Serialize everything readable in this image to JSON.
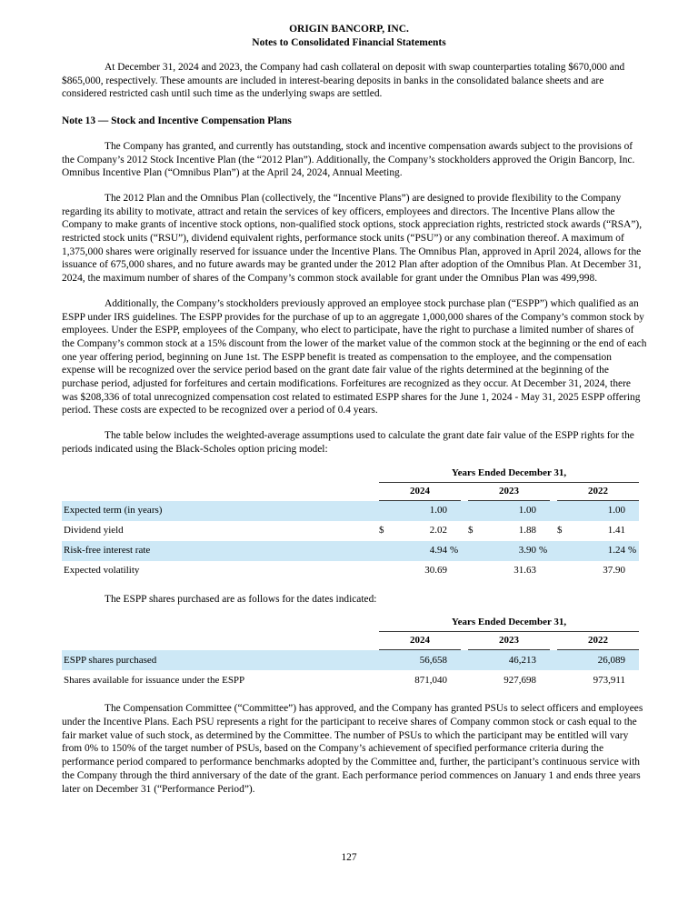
{
  "colors": {
    "row_shade": "#cde8f6",
    "rule": "#333333"
  },
  "header": {
    "title": "ORIGIN BANCORP, INC.",
    "subtitle": "Notes to Consolidated Financial Statements"
  },
  "paragraphs": {
    "p1": "At December 31, 2024 and 2023, the Company had cash collateral on deposit with swap counterparties totaling $670,000 and $865,000, respectively. These amounts are included in interest-bearing deposits in banks in the consolidated balance sheets and are considered restricted cash until such time as the underlying swaps are settled.",
    "note_heading": "Note 13 — Stock and Incentive Compensation Plans",
    "p2": "The Company has granted, and currently has outstanding, stock and incentive compensation awards subject to the provisions of the Company’s 2012 Stock Incentive Plan (the “2012 Plan”). Additionally, the Company’s stockholders approved the Origin Bancorp, Inc. Omnibus Incentive Plan (“Omnibus Plan”) at the April 24, 2024, Annual Meeting.",
    "p3": "The 2012 Plan and the Omnibus Plan (collectively, the “Incentive Plans”) are designed to provide flexibility to the Company regarding its ability to motivate, attract and retain the services of key officers, employees and directors. The Incentive Plans allow the Company to make grants of incentive stock options, non-qualified stock options, stock appreciation rights, restricted stock awards (“RSA”), restricted stock units (“RSU”), dividend equivalent rights, performance stock units (“PSU”) or any combination thereof. A maximum of 1,375,000 shares were originally reserved for issuance under the Incentive Plans. The Omnibus Plan, approved in April 2024, allows for the issuance of 675,000 shares, and no future awards may be granted under the 2012 Plan after adoption of the Omnibus Plan. At December 31, 2024, the maximum number of shares of the Company’s common stock available for grant under the Omnibus Plan was 499,998.",
    "p4": "Additionally, the Company’s stockholders previously approved an employee stock purchase plan (“ESPP”) which qualified as an ESPP under IRS guidelines. The ESPP provides for the purchase of up to an aggregate 1,000,000 shares of the Company’s common stock by employees. Under the ESPP, employees of the Company, who elect to participate, have the right to purchase a limited number of shares of the Company’s common stock at a 15% discount from the lower of the market value of the common stock at the beginning or the end of each one year offering period, beginning on June 1st. The ESPP benefit is treated as compensation to the employee, and the compensation expense will be recognized over the service period based on the grant date fair value of the rights determined at the beginning of the purchase period, adjusted for forfeitures and certain modifications. Forfeitures are recognized as they occur. At December 31, 2024, there was $208,336 of total unrecognized compensation cost related to estimated ESPP shares for the June 1, 2024 - May 31, 2025 ESPP offering period. These costs are expected to be recognized over a period of 0.4 years.",
    "p5": "The table below includes the weighted-average assumptions used to calculate the grant date fair value of the ESPP rights for the periods indicated using the Black-Scholes option pricing model:",
    "p6": "The ESPP shares purchased are as follows for the dates indicated:",
    "p7": "The Compensation Committee (“Committee”) has approved, and the Company has granted PSUs to select officers and employees under the Incentive Plans. Each PSU represents a right for the participant to receive shares of Company common stock or cash equal to the fair market value of such stock, as determined by the Committee. The number of PSUs to which the participant may be entitled will vary from 0% to 150% of the target number of PSUs, based on the Company’s achievement of specified performance criteria during the performance period compared to performance benchmarks adopted by the Committee and, further, the participant’s continuous service with the Company through the third anniversary of the date of the grant. Each performance period commences on January 1 and ends three years later on December 31 (“Performance Period”)."
  },
  "table1": {
    "span_header": "Years Ended December 31,",
    "years": [
      "2024",
      "2023",
      "2022"
    ],
    "rows": [
      {
        "label": "Expected term (in years)",
        "cells": [
          {
            "pre": "",
            "val": "1.00",
            "suf": ""
          },
          {
            "pre": "",
            "val": "1.00",
            "suf": ""
          },
          {
            "pre": "",
            "val": "1.00",
            "suf": ""
          }
        ]
      },
      {
        "label": "Dividend yield",
        "cells": [
          {
            "pre": "$",
            "val": "2.02",
            "suf": ""
          },
          {
            "pre": "$",
            "val": "1.88",
            "suf": ""
          },
          {
            "pre": "$",
            "val": "1.41",
            "suf": ""
          }
        ]
      },
      {
        "label": "Risk-free interest rate",
        "cells": [
          {
            "pre": "",
            "val": "4.94",
            "suf": "%"
          },
          {
            "pre": "",
            "val": "3.90",
            "suf": "%"
          },
          {
            "pre": "",
            "val": "1.24",
            "suf": "%"
          }
        ]
      },
      {
        "label": "Expected volatility",
        "cells": [
          {
            "pre": "",
            "val": "30.69",
            "suf": ""
          },
          {
            "pre": "",
            "val": "31.63",
            "suf": ""
          },
          {
            "pre": "",
            "val": "37.90",
            "suf": ""
          }
        ]
      }
    ]
  },
  "table2": {
    "span_header": "Years Ended December 31,",
    "years": [
      "2024",
      "2023",
      "2022"
    ],
    "rows": [
      {
        "label": "ESPP shares purchased",
        "cells": [
          {
            "pre": "",
            "val": "56,658",
            "suf": ""
          },
          {
            "pre": "",
            "val": "46,213",
            "suf": ""
          },
          {
            "pre": "",
            "val": "26,089",
            "suf": ""
          }
        ]
      },
      {
        "label": "Shares available for issuance under the ESPP",
        "cells": [
          {
            "pre": "",
            "val": "871,040",
            "suf": ""
          },
          {
            "pre": "",
            "val": "927,698",
            "suf": ""
          },
          {
            "pre": "",
            "val": "973,911",
            "suf": ""
          }
        ]
      }
    ]
  },
  "footer": {
    "page_number": "127"
  }
}
